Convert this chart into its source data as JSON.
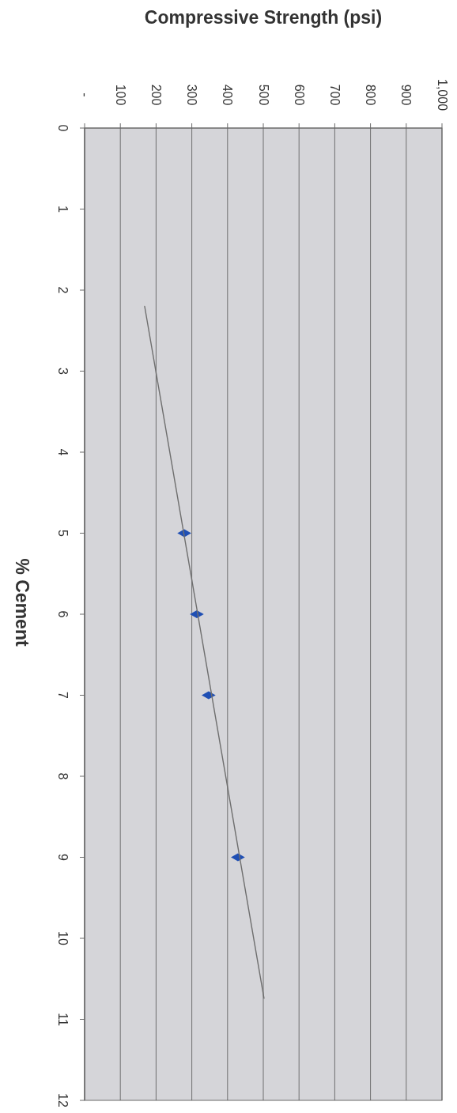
{
  "chart_data": {
    "type": "scatter",
    "xlabel": "Compressive Strength (psi)",
    "ylabel": "% Cement",
    "xlim": [
      0,
      1000
    ],
    "xticks": [
      {
        "value": 0,
        "label": "-"
      },
      100,
      200,
      300,
      400,
      500,
      600,
      700,
      800,
      900,
      {
        "value": 1000,
        "label": "1,000"
      }
    ],
    "ylim": [
      12,
      0
    ],
    "yticks": [
      0,
      1,
      2,
      3,
      4,
      5,
      6,
      7,
      8,
      9,
      10,
      11,
      12
    ],
    "grid": "x",
    "marker": "diamond",
    "series": [
      {
        "color": "#1f4fb4",
        "x": [
          279,
          314,
          347,
          429
        ],
        "values": [
          5,
          6,
          7,
          9
        ]
      },
      {
        "type": "line",
        "color": "#6e6e6e",
        "marker": "none",
        "x": [
          168,
          502
        ],
        "values": [
          2.2,
          10.74
        ]
      }
    ]
  }
}
